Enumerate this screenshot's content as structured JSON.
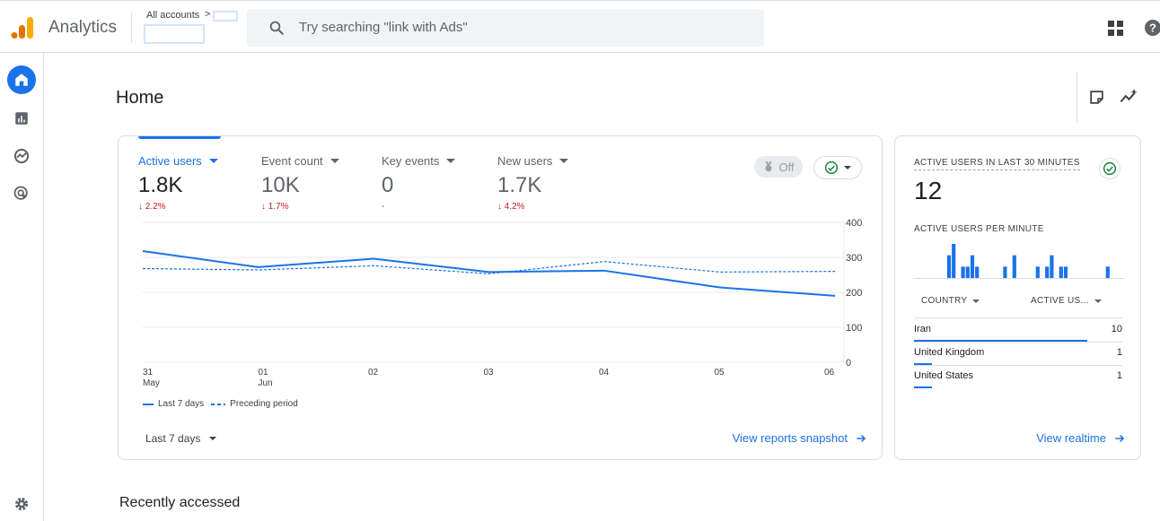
{
  "header": {
    "app_name": "Analytics",
    "accounts_label": "All accounts",
    "accounts_chevron": ">",
    "search_placeholder": "Try searching \"link with Ads\""
  },
  "page": {
    "title": "Home",
    "recently_accessed": "Recently accessed"
  },
  "overview": {
    "metrics": [
      {
        "label": "Active users",
        "value": "1.8K",
        "change": "↓ 2.2%"
      },
      {
        "label": "Event count",
        "value": "10K",
        "change": "↓ 1.7%"
      },
      {
        "label": "Key events",
        "value": "0",
        "change": "-"
      },
      {
        "label": "New users",
        "value": "1.7K",
        "change": "↓ 4.2%"
      }
    ],
    "off_label": "Off",
    "legend": {
      "current": "Last 7 days",
      "previous": "Preceding period"
    },
    "date_range": "Last 7 days",
    "view_link": "View reports snapshot"
  },
  "chart_data": {
    "type": "line",
    "x": [
      "31 May",
      "01 Jun",
      "02",
      "03",
      "04",
      "05",
      "06"
    ],
    "x_tick_lines": [
      [
        "31",
        "May"
      ],
      [
        "01",
        "Jun"
      ],
      [
        "02"
      ],
      [
        "03"
      ],
      [
        "04"
      ],
      [
        "05"
      ],
      [
        "06"
      ]
    ],
    "y_ticks": [
      "400",
      "300",
      "200",
      "100",
      "0"
    ],
    "ylim": [
      0,
      400
    ],
    "series": [
      {
        "name": "Last 7 days",
        "style": "solid",
        "values": [
          318,
          272,
          296,
          258,
          262,
          214,
          190
        ]
      },
      {
        "name": "Preceding period",
        "style": "dashed",
        "values": [
          268,
          264,
          276,
          253,
          288,
          258,
          260
        ]
      }
    ],
    "color": "#1a73e8",
    "grid": true
  },
  "realtime": {
    "title": "ACTIVE USERS IN LAST 30 MINUTES",
    "value": "12",
    "per_minute_label": "ACTIVE USERS PER MINUTE",
    "per_minute_values": [
      0,
      0,
      0,
      0,
      0,
      0,
      0,
      2,
      3,
      0,
      1,
      1,
      2,
      1,
      0,
      0,
      0,
      0,
      0,
      1,
      0,
      2,
      0,
      0,
      0,
      0,
      1,
      0,
      1,
      2,
      0,
      1,
      1,
      0,
      0,
      0,
      0,
      0,
      0,
      0,
      0,
      1,
      0,
      0,
      0
    ],
    "col_country": "COUNTRY",
    "col_users": "ACTIVE US...",
    "rows": [
      {
        "country": "Iran",
        "users": "10",
        "share": 0.83
      },
      {
        "country": "United Kingdom",
        "users": "1",
        "share": 0.08
      },
      {
        "country": "United States",
        "users": "1",
        "share": 0.08
      }
    ],
    "view_link": "View realtime"
  },
  "colors": {
    "accent": "#1a73e8",
    "negative": "#c5221f",
    "logo_orange": "#f9ab00",
    "logo_dark": "#e37400"
  }
}
